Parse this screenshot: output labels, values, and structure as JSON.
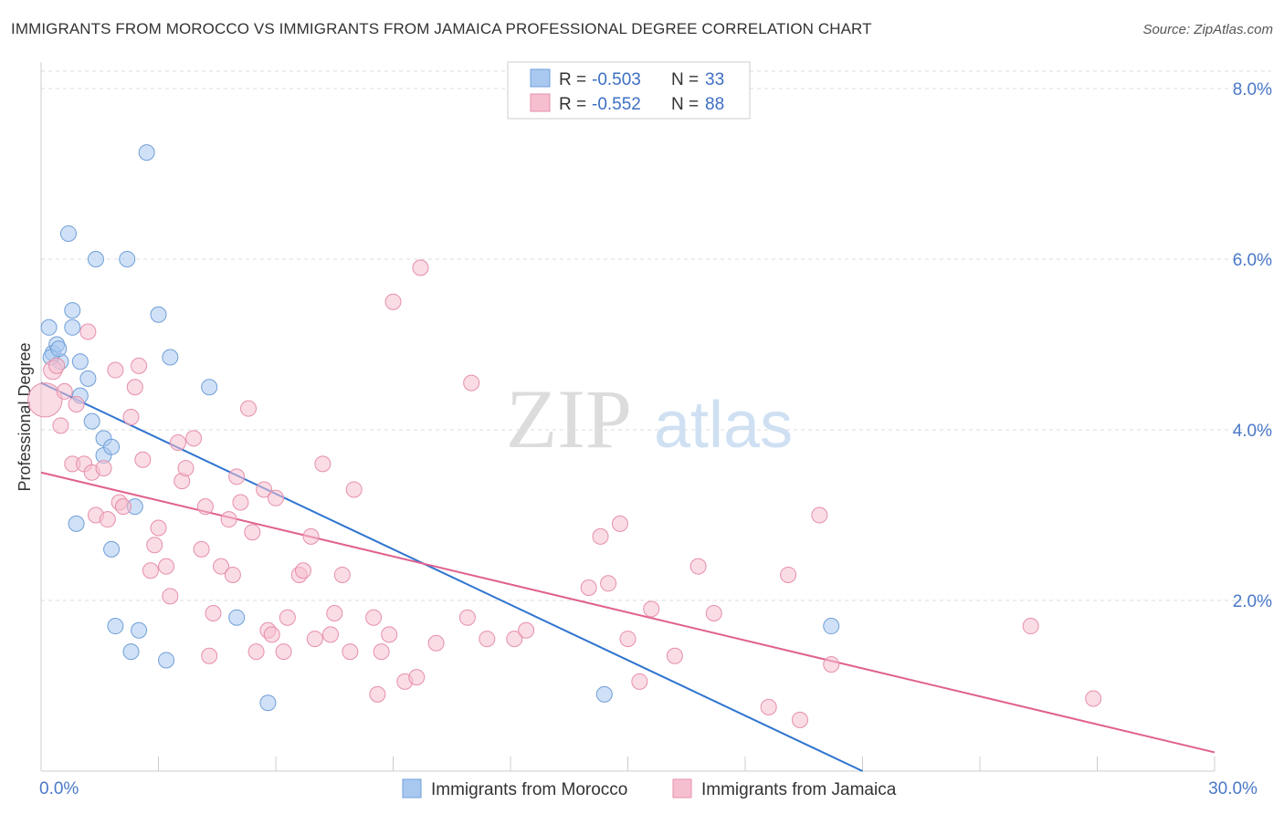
{
  "title": "IMMIGRANTS FROM MOROCCO VS IMMIGRANTS FROM JAMAICA PROFESSIONAL DEGREE CORRELATION CHART",
  "source": "Source: ZipAtlas.com",
  "watermark": {
    "zip": "ZIP",
    "atlas": "atlas"
  },
  "colors": {
    "morocco_fill": "#a9c8f0",
    "morocco_stroke": "#6f9fd8",
    "morocco_line": "#2f74d0",
    "jamaica_fill": "#f6bfd0",
    "jamaica_stroke": "#e68fab",
    "jamaica_line": "#e0608e",
    "tick_label": "#4a78c8",
    "grid": "#dddddd"
  },
  "legend": {
    "rows": [
      {
        "r_label": "R =",
        "r_value": "-0.503",
        "n_label": "N =",
        "n_value": "33"
      },
      {
        "r_label": "R =",
        "r_value": "-0.552",
        "n_label": "N =",
        "n_value": "88"
      }
    ]
  },
  "chart_data": {
    "type": "scatter",
    "title": "IMMIGRANTS FROM MOROCCO VS IMMIGRANTS FROM JAMAICA PROFESSIONAL DEGREE CORRELATION CHART",
    "xlabel": "",
    "ylabel": "Professional Degree",
    "xlim": [
      0,
      30
    ],
    "ylim": [
      0,
      8.3
    ],
    "x_tick_labels": [
      {
        "value": 0,
        "label": "0.0%"
      },
      {
        "value": 30,
        "label": "30.0%"
      }
    ],
    "y_tick_labels": [
      {
        "value": 2,
        "label": "2.0%"
      },
      {
        "value": 4,
        "label": "4.0%"
      },
      {
        "value": 6,
        "label": "6.0%"
      },
      {
        "value": 8,
        "label": "8.0%"
      }
    ],
    "legend_position": "top-center",
    "series": [
      {
        "name": "Immigrants from Morocco",
        "r": -0.503,
        "n": 33,
        "trend": {
          "x": [
            0,
            21.0
          ],
          "y": [
            4.55,
            0.0
          ]
        },
        "points": [
          {
            "x": 0.2,
            "y": 5.2,
            "s": 1
          },
          {
            "x": 0.3,
            "y": 4.9,
            "s": 1
          },
          {
            "x": 0.4,
            "y": 5.0,
            "s": 1
          },
          {
            "x": 0.5,
            "y": 4.8,
            "s": 1
          },
          {
            "x": 0.7,
            "y": 6.3,
            "s": 1
          },
          {
            "x": 0.8,
            "y": 5.2,
            "s": 1
          },
          {
            "x": 0.8,
            "y": 5.4,
            "s": 1
          },
          {
            "x": 1.0,
            "y": 4.8,
            "s": 1
          },
          {
            "x": 1.0,
            "y": 4.4,
            "s": 1
          },
          {
            "x": 1.2,
            "y": 4.6,
            "s": 1
          },
          {
            "x": 1.3,
            "y": 4.1,
            "s": 1
          },
          {
            "x": 1.4,
            "y": 6.0,
            "s": 1
          },
          {
            "x": 1.6,
            "y": 3.7,
            "s": 1
          },
          {
            "x": 1.6,
            "y": 3.9,
            "s": 1
          },
          {
            "x": 1.8,
            "y": 3.8,
            "s": 1
          },
          {
            "x": 0.9,
            "y": 2.9,
            "s": 1
          },
          {
            "x": 1.8,
            "y": 2.6,
            "s": 1
          },
          {
            "x": 1.9,
            "y": 1.7,
            "s": 1
          },
          {
            "x": 2.2,
            "y": 6.0,
            "s": 1
          },
          {
            "x": 2.3,
            "y": 1.4,
            "s": 1
          },
          {
            "x": 2.4,
            "y": 3.1,
            "s": 1
          },
          {
            "x": 2.5,
            "y": 1.65,
            "s": 1
          },
          {
            "x": 2.7,
            "y": 7.25,
            "s": 1
          },
          {
            "x": 3.0,
            "y": 5.35,
            "s": 1
          },
          {
            "x": 3.2,
            "y": 1.3,
            "s": 1
          },
          {
            "x": 3.3,
            "y": 4.85,
            "s": 1
          },
          {
            "x": 4.3,
            "y": 4.5,
            "s": 1
          },
          {
            "x": 5.0,
            "y": 1.8,
            "s": 1
          },
          {
            "x": 5.8,
            "y": 0.8,
            "s": 1
          },
          {
            "x": 14.4,
            "y": 0.9,
            "s": 1
          },
          {
            "x": 20.2,
            "y": 1.7,
            "s": 1
          },
          {
            "x": 0.25,
            "y": 4.85,
            "s": 1
          },
          {
            "x": 0.45,
            "y": 4.95,
            "s": 1
          }
        ]
      },
      {
        "name": "Immigrants from Jamaica",
        "r": -0.552,
        "n": 88,
        "trend": {
          "x": [
            0,
            30
          ],
          "y": [
            3.5,
            0.22
          ]
        },
        "points": [
          {
            "x": 0.1,
            "y": 4.35,
            "s": 2.2
          },
          {
            "x": 0.3,
            "y": 4.7,
            "s": 1.2
          },
          {
            "x": 0.4,
            "y": 4.75,
            "s": 1
          },
          {
            "x": 0.5,
            "y": 4.05,
            "s": 1
          },
          {
            "x": 0.6,
            "y": 4.45,
            "s": 1
          },
          {
            "x": 0.8,
            "y": 3.6,
            "s": 1
          },
          {
            "x": 0.9,
            "y": 4.3,
            "s": 1
          },
          {
            "x": 1.1,
            "y": 3.6,
            "s": 1
          },
          {
            "x": 1.2,
            "y": 5.15,
            "s": 1
          },
          {
            "x": 1.3,
            "y": 3.5,
            "s": 1
          },
          {
            "x": 1.4,
            "y": 3.0,
            "s": 1
          },
          {
            "x": 1.6,
            "y": 3.55,
            "s": 1
          },
          {
            "x": 1.7,
            "y": 2.95,
            "s": 1
          },
          {
            "x": 1.9,
            "y": 4.7,
            "s": 1
          },
          {
            "x": 2.0,
            "y": 3.15,
            "s": 1
          },
          {
            "x": 2.1,
            "y": 3.1,
            "s": 1
          },
          {
            "x": 2.3,
            "y": 4.15,
            "s": 1
          },
          {
            "x": 2.4,
            "y": 4.5,
            "s": 1
          },
          {
            "x": 2.5,
            "y": 4.75,
            "s": 1
          },
          {
            "x": 2.6,
            "y": 3.65,
            "s": 1
          },
          {
            "x": 2.8,
            "y": 2.35,
            "s": 1
          },
          {
            "x": 2.9,
            "y": 2.65,
            "s": 1
          },
          {
            "x": 3.0,
            "y": 2.85,
            "s": 1
          },
          {
            "x": 3.2,
            "y": 2.4,
            "s": 1
          },
          {
            "x": 3.3,
            "y": 2.05,
            "s": 1
          },
          {
            "x": 3.5,
            "y": 3.85,
            "s": 1
          },
          {
            "x": 3.6,
            "y": 3.4,
            "s": 1
          },
          {
            "x": 3.7,
            "y": 3.55,
            "s": 1
          },
          {
            "x": 3.9,
            "y": 3.9,
            "s": 1
          },
          {
            "x": 4.1,
            "y": 2.6,
            "s": 1
          },
          {
            "x": 4.2,
            "y": 3.1,
            "s": 1
          },
          {
            "x": 4.3,
            "y": 1.35,
            "s": 1
          },
          {
            "x": 4.4,
            "y": 1.85,
            "s": 1
          },
          {
            "x": 4.6,
            "y": 2.4,
            "s": 1
          },
          {
            "x": 4.8,
            "y": 2.95,
            "s": 1
          },
          {
            "x": 4.9,
            "y": 2.3,
            "s": 1
          },
          {
            "x": 5.0,
            "y": 3.45,
            "s": 1
          },
          {
            "x": 5.1,
            "y": 3.15,
            "s": 1
          },
          {
            "x": 5.3,
            "y": 4.25,
            "s": 1
          },
          {
            "x": 5.4,
            "y": 2.8,
            "s": 1
          },
          {
            "x": 5.5,
            "y": 1.4,
            "s": 1
          },
          {
            "x": 5.7,
            "y": 3.3,
            "s": 1
          },
          {
            "x": 5.8,
            "y": 1.65,
            "s": 1
          },
          {
            "x": 5.9,
            "y": 1.6,
            "s": 1
          },
          {
            "x": 6.0,
            "y": 3.2,
            "s": 1
          },
          {
            "x": 6.2,
            "y": 1.4,
            "s": 1
          },
          {
            "x": 6.3,
            "y": 1.8,
            "s": 1
          },
          {
            "x": 6.6,
            "y": 2.3,
            "s": 1
          },
          {
            "x": 6.7,
            "y": 2.35,
            "s": 1
          },
          {
            "x": 6.9,
            "y": 2.75,
            "s": 1
          },
          {
            "x": 7.0,
            "y": 1.55,
            "s": 1
          },
          {
            "x": 7.2,
            "y": 3.6,
            "s": 1
          },
          {
            "x": 7.4,
            "y": 1.6,
            "s": 1
          },
          {
            "x": 7.5,
            "y": 1.85,
            "s": 1
          },
          {
            "x": 7.7,
            "y": 2.3,
            "s": 1
          },
          {
            "x": 7.9,
            "y": 1.4,
            "s": 1
          },
          {
            "x": 8.0,
            "y": 3.3,
            "s": 1
          },
          {
            "x": 8.5,
            "y": 1.8,
            "s": 1
          },
          {
            "x": 8.6,
            "y": 0.9,
            "s": 1
          },
          {
            "x": 8.7,
            "y": 1.4,
            "s": 1
          },
          {
            "x": 8.9,
            "y": 1.6,
            "s": 1
          },
          {
            "x": 9.0,
            "y": 5.5,
            "s": 1
          },
          {
            "x": 9.3,
            "y": 1.05,
            "s": 1
          },
          {
            "x": 9.6,
            "y": 1.1,
            "s": 1
          },
          {
            "x": 9.7,
            "y": 5.9,
            "s": 1
          },
          {
            "x": 10.1,
            "y": 1.5,
            "s": 1
          },
          {
            "x": 10.9,
            "y": 1.8,
            "s": 1
          },
          {
            "x": 11.0,
            "y": 4.55,
            "s": 1
          },
          {
            "x": 11.4,
            "y": 1.55,
            "s": 1
          },
          {
            "x": 12.1,
            "y": 1.55,
            "s": 1
          },
          {
            "x": 12.4,
            "y": 1.65,
            "s": 1
          },
          {
            "x": 14.3,
            "y": 2.75,
            "s": 1
          },
          {
            "x": 14.0,
            "y": 2.15,
            "s": 1
          },
          {
            "x": 14.5,
            "y": 2.2,
            "s": 1
          },
          {
            "x": 14.8,
            "y": 2.9,
            "s": 1
          },
          {
            "x": 15.0,
            "y": 1.55,
            "s": 1
          },
          {
            "x": 15.3,
            "y": 1.05,
            "s": 1
          },
          {
            "x": 15.6,
            "y": 1.9,
            "s": 1
          },
          {
            "x": 16.2,
            "y": 1.35,
            "s": 1
          },
          {
            "x": 16.8,
            "y": 2.4,
            "s": 1
          },
          {
            "x": 17.2,
            "y": 1.85,
            "s": 1
          },
          {
            "x": 18.6,
            "y": 0.75,
            "s": 1
          },
          {
            "x": 19.1,
            "y": 2.3,
            "s": 1
          },
          {
            "x": 19.4,
            "y": 0.6,
            "s": 1
          },
          {
            "x": 19.9,
            "y": 3.0,
            "s": 1
          },
          {
            "x": 20.2,
            "y": 1.25,
            "s": 1
          },
          {
            "x": 25.3,
            "y": 1.7,
            "s": 1
          },
          {
            "x": 26.9,
            "y": 0.85,
            "s": 1
          }
        ]
      }
    ]
  }
}
